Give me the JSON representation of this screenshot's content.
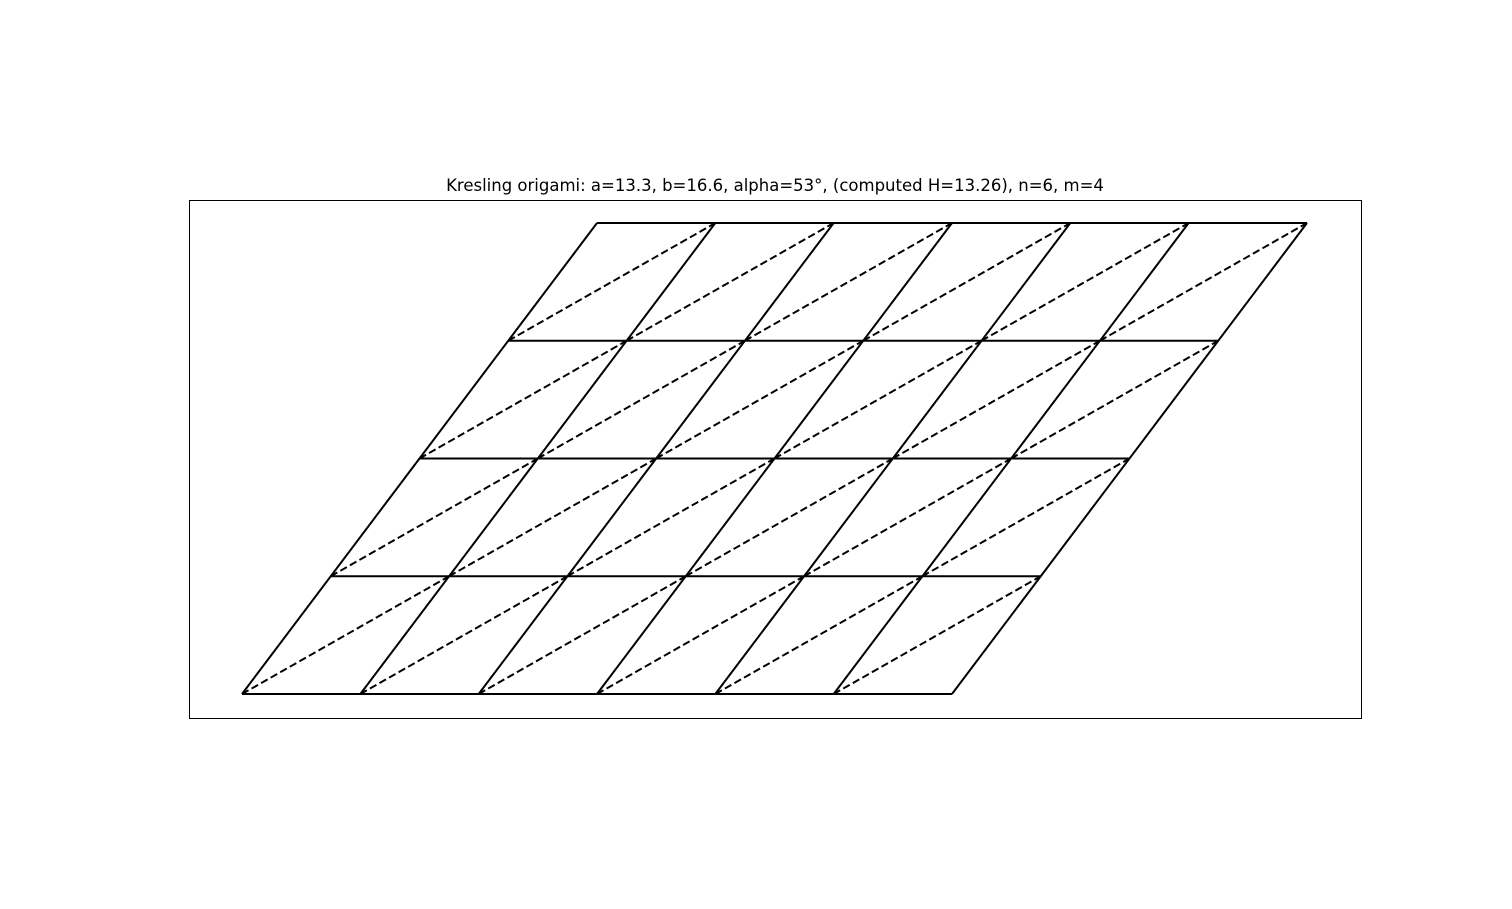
{
  "figure": {
    "title": "Kresling origami: a=13.3, b=16.6, alpha=53°, (computed H=13.26), n=6, m=4"
  },
  "pattern": {
    "n": 6,
    "m": 4,
    "line_color": "#000000",
    "frame_color": "#000000",
    "background_color": "#ffffff"
  }
}
